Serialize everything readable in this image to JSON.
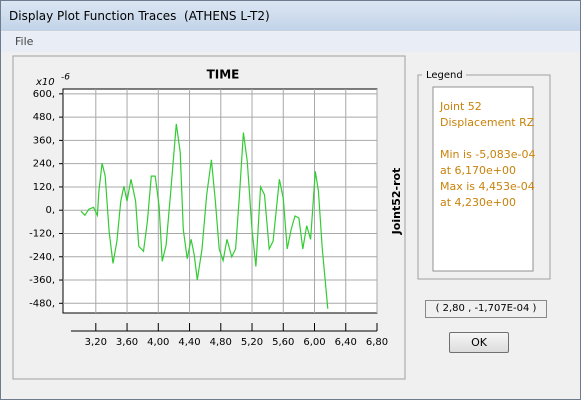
{
  "window": {
    "title": "Display Plot Function Traces  (ATHENS L-T2)",
    "menu": [
      "File"
    ]
  },
  "chart_data": {
    "type": "line",
    "title": "TIME",
    "y_label": "Joint52-rot",
    "y_multiplier": {
      "base": "x10",
      "exponent": "-6"
    },
    "x": [
      3.01,
      3.06,
      3.11,
      3.17,
      3.22,
      3.24,
      3.28,
      3.32,
      3.37,
      3.42,
      3.47,
      3.52,
      3.56,
      3.6,
      3.65,
      3.71,
      3.75,
      3.81,
      3.86,
      3.91,
      3.96,
      4.01,
      4.05,
      4.1,
      4.16,
      4.23,
      4.28,
      4.32,
      4.37,
      4.42,
      4.46,
      4.5,
      4.56,
      4.62,
      4.68,
      4.73,
      4.78,
      4.83,
      4.88,
      4.94,
      4.99,
      5.04,
      5.09,
      5.14,
      5.2,
      5.25,
      5.31,
      5.36,
      5.42,
      5.47,
      5.55,
      5.6,
      5.65,
      5.7,
      5.75,
      5.8,
      5.85,
      5.9,
      5.95,
      6.01,
      6.05,
      6.1,
      6.17
    ],
    "series": [
      {
        "name": "Joint 52",
        "color": "#33cc33",
        "values": [
          -5,
          -26,
          5,
          15,
          -26,
          98,
          243,
          176,
          -108,
          -274,
          -160,
          47,
          124,
          47,
          160,
          47,
          -186,
          -212,
          -57,
          176,
          176,
          21,
          -264,
          -180,
          100,
          445,
          300,
          -100,
          -250,
          -150,
          -230,
          -360,
          -200,
          80,
          260,
          50,
          -200,
          -260,
          -150,
          -240,
          -200,
          80,
          400,
          250,
          -100,
          -290,
          120,
          80,
          -200,
          -160,
          160,
          60,
          -200,
          -100,
          -30,
          -40,
          -200,
          -80,
          -150,
          200,
          100,
          -200,
          -508
        ]
      }
    ],
    "xlim": [
      2.78,
      6.8
    ],
    "ylim": [
      -530,
      625
    ],
    "xticks": [
      {
        "value": 3.2,
        "label": "3,20"
      },
      {
        "value": 3.6,
        "label": "3,60"
      },
      {
        "value": 4.0,
        "label": "4,00"
      },
      {
        "value": 4.4,
        "label": "4,40"
      },
      {
        "value": 4.8,
        "label": "4,80"
      },
      {
        "value": 5.2,
        "label": "5,20"
      },
      {
        "value": 5.6,
        "label": "5,60"
      },
      {
        "value": 6.0,
        "label": "6,00"
      },
      {
        "value": 6.4,
        "label": "6,40"
      },
      {
        "value": 6.8,
        "label": "6,80"
      }
    ],
    "yticks": [
      {
        "value": 600,
        "label": "600,"
      },
      {
        "value": 480,
        "label": "480,"
      },
      {
        "value": 360,
        "label": "360,"
      },
      {
        "value": 240,
        "label": "240,"
      },
      {
        "value": 120,
        "label": "120,"
      },
      {
        "value": 0,
        "label": "0,"
      },
      {
        "value": -120,
        "label": "-120,"
      },
      {
        "value": -240,
        "label": "-240,"
      },
      {
        "value": -360,
        "label": "-360,"
      },
      {
        "value": -480,
        "label": "-480,"
      }
    ],
    "grid": true
  },
  "legend": {
    "title": "Legend",
    "lines": [
      "Joint 52",
      "Displacement  RZ",
      "Min is -5,083e-04",
      "at 6,170e+00",
      "Max is 4,453e-04",
      "at 4,230e+00"
    ]
  },
  "cursor": "( 2,80 , -1,707E-04 )",
  "button": "OK"
}
